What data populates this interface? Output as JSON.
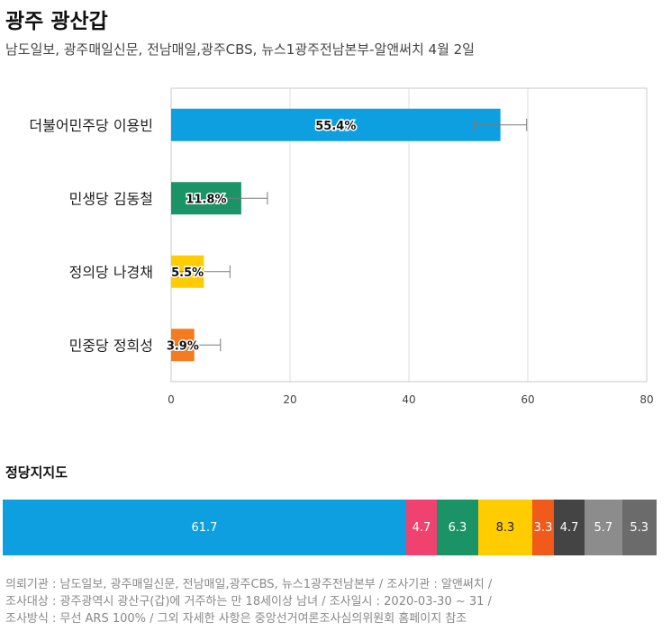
{
  "title": "광주 광산갑",
  "subtitle": "남도일보, 광주매일신문, 전남매일,광주CBS, 뉴스1광주전남본부-알앤써치 4월 2일",
  "chart_data": {
    "type": "bar",
    "orientation": "horizontal",
    "categories": [
      "더불어민주당 이용빈",
      "민생당 김동철",
      "정의당 나경채",
      "민중당 정희성"
    ],
    "values": [
      55.4,
      11.8,
      5.5,
      3.9
    ],
    "labels": [
      "55.4%",
      "11.8%",
      "5.5%",
      "3.9%"
    ],
    "error_margin": 4.4,
    "colors": [
      "#0e9fe0",
      "#1a9466",
      "#ffcc00",
      "#f47b20"
    ],
    "xlim": [
      0,
      80
    ],
    "xticks": [
      0,
      20,
      40,
      60,
      80
    ],
    "grid": true
  },
  "party_support": {
    "title": "정당지지도",
    "segments": [
      {
        "value": "61.7",
        "color": "#0e9fe0",
        "text_color": "#ffffff"
      },
      {
        "value": "4.7",
        "color": "#ef426f",
        "text_color": "#ffffff"
      },
      {
        "value": "6.3",
        "color": "#1a9466",
        "text_color": "#ffffff"
      },
      {
        "value": "8.3",
        "color": "#ffcc00",
        "text_color": "#222222"
      },
      {
        "value": "3.3",
        "color": "#f05a1a",
        "text_color": "#ffffff"
      },
      {
        "value": "4.7",
        "color": "#444444",
        "text_color": "#ffffff"
      },
      {
        "value": "5.7",
        "color": "#8c8c8c",
        "text_color": "#ffffff"
      },
      {
        "value": "5.3",
        "color": "#6b6b6b",
        "text_color": "#ffffff"
      }
    ]
  },
  "footer": {
    "line1": "의뢰기관 : 남도일보, 광주매일신문, 전남매일,광주CBS, 뉴스1광주전남본부 / 조사기관 : 알앤써치 /",
    "line2": "조사대상 : 광주광역시 광산구(갑)에 거주하는 만 18세이상 남녀 / 조사일시 : 2020-03-30 ~ 31 /",
    "line3": "조사방식 : 무선 ARS 100% / 그외 자세한 사항은 중앙선거여론조사심의위원회 홈페이지 참조"
  }
}
